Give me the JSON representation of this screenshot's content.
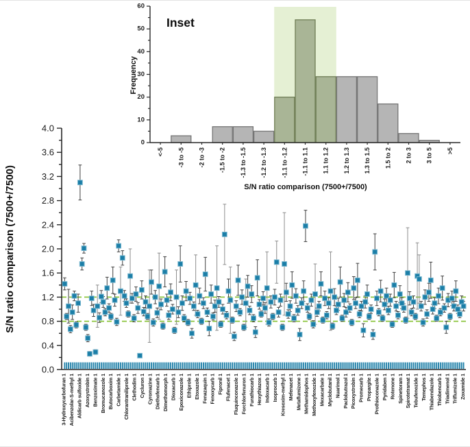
{
  "figure": {
    "main": {
      "y_title": "S/N ratio comparison (7500+/7500)"
    },
    "inset": {
      "label": "Inset",
      "y_title": "Frequency",
      "x_title": "S/N ratio comparison (7500+/7500)"
    }
  },
  "colors": {
    "marker": "#1b7ea7",
    "marker_edge": "#7ab8d0",
    "error_bar_dark": "#3f3f3f",
    "error_bar_light": "#8c8c8c",
    "reference_line": "#8dc63f",
    "axis": "#262626",
    "hist_bar_fill": "#b5b5b5",
    "hist_bar_stroke": "#757575",
    "hist_highlight_bar_fill": "#a9b596",
    "hist_highlight_bar_stroke": "#6f7d55",
    "hist_highlight_bg": "#e5f0d4"
  },
  "chart_data": [
    {
      "id": "main",
      "type": "scatter",
      "marker": "square",
      "error_bars": true,
      "grid": false,
      "ylabel": "S/N ratio comparison (7500+/7500)",
      "ylim": [
        0.0,
        4.0
      ],
      "ytick_step": 0.4,
      "ytick_minor_step": 0.2,
      "reference_lines": [
        0.8,
        1.2
      ],
      "baseline_band_value": 0.05,
      "points_per_category": 4,
      "categories": [
        "3-Hydroxycarbofuran 1",
        "Acibenzolar-S-methyl 1",
        "Aldicarb sulfoxide 1",
        "Azoxystrobin 1",
        "Benzoximate 1",
        "Bromucanozole 1",
        "Butocarboxim 1",
        "Carbetamide 1",
        "Chlorantraniliprole 1",
        "Clethodim 1",
        "Cycluron 1",
        "Cyromazine 1",
        "Diethofencarb 1",
        "Dimethomorph 1",
        "Dioxacarb 1",
        "Epoxiconazole 1",
        "Ethiprole 1",
        "Etoxazole 1",
        "Fenazaquin 1",
        "Fenoxycarb 1",
        "Fipronil 1",
        "Flufenacet 1",
        "Fluquinconazole 1",
        "Forchlorfenuron 1",
        "Furathiocarb 1",
        "Hexythiazox 1",
        "Indoxacarb 1",
        "Isoprocarb 1",
        "Kresoxim-methyl 1",
        "Mefenacet 1",
        "Metaflumizone 1",
        "Methamidophos 1",
        "Methoxyfenozide 1",
        "Mexacarbate 1",
        "Myclobutanil 1",
        "Nuarimol 1",
        "Paclobutrazol 1",
        "Picoxystrobin 1",
        "Promecarb 1",
        "Propargite 1",
        "Prothioconazole 1",
        "Pyridaben 1",
        "Rotenone 1",
        "Spinetoram 1",
        "Spirotetramat 1",
        "Tebufenozide 1",
        "Temephos 1",
        "Thiabendazole 1",
        "Thiobencarb 1",
        "Triadimenol 1",
        "Triflumizole 1",
        "Zoxamide 1"
      ],
      "points": [
        [
          1.42,
          0.1
        ],
        [
          0.88,
          0.05
        ],
        [
          1.05,
          0.28
        ],
        [
          0.67,
          0.06
        ],
        [
          0.95,
          0.12
        ],
        [
          1.22,
          0.08
        ],
        [
          0.74,
          0.05
        ],
        [
          1.1,
          0.15
        ],
        [
          3.1,
          0.29
        ],
        [
          1.75,
          0.1
        ],
        [
          2.01,
          0.08
        ],
        [
          0.7,
          0.05
        ],
        [
          0.52,
          0.06
        ],
        [
          0.26,
          0.04
        ],
        [
          1.18,
          0.12
        ],
        [
          0.98,
          0.1
        ],
        [
          0.29,
          0.04
        ],
        [
          1.05,
          0.35
        ],
        [
          0.86,
          0.08
        ],
        [
          1.21,
          0.1
        ],
        [
          1.12,
          0.09
        ],
        [
          0.95,
          0.06
        ],
        [
          1.35,
          0.18
        ],
        [
          1.02,
          0.07
        ],
        [
          0.88,
          0.05
        ],
        [
          1.48,
          0.22
        ],
        [
          1.15,
          0.1
        ],
        [
          0.79,
          0.06
        ],
        [
          2.05,
          0.1
        ],
        [
          1.3,
          0.4
        ],
        [
          1.85,
          0.12
        ],
        [
          1.22,
          0.09
        ],
        [
          1.1,
          0.07
        ],
        [
          0.92,
          0.05
        ],
        [
          1.55,
          0.45
        ],
        [
          1.18,
          0.08
        ],
        [
          0.85,
          0.06
        ],
        [
          1.25,
          0.12
        ],
        [
          1.02,
          0.09
        ],
        [
          0.23,
          0.03
        ],
        [
          1.32,
          0.15
        ],
        [
          0.96,
          0.07
        ],
        [
          1.12,
          0.1
        ],
        [
          0.88,
          0.05
        ],
        [
          1.05,
          0.6
        ],
        [
          1.45,
          0.2
        ],
        [
          0.78,
          0.06
        ],
        [
          1.2,
          0.11
        ],
        [
          0.94,
          0.08
        ],
        [
          1.38,
          0.55
        ],
        [
          1.08,
          0.09
        ],
        [
          0.72,
          0.05
        ],
        [
          1.62,
          0.25
        ],
        [
          1.15,
          0.1
        ],
        [
          0.9,
          0.07
        ],
        [
          1.28,
          0.14
        ],
        [
          1.0,
          0.08
        ],
        [
          0.65,
          0.05
        ],
        [
          1.2,
          0.45
        ],
        [
          0.95,
          0.09
        ],
        [
          1.75,
          0.3
        ],
        [
          1.1,
          0.12
        ],
        [
          0.85,
          0.06
        ],
        [
          1.3,
          0.16
        ],
        [
          0.78,
          0.05
        ],
        [
          1.18,
          0.1
        ],
        [
          0.6,
          0.08
        ],
        [
          1.05,
          0.07
        ],
        [
          1.4,
          0.5
        ],
        [
          0.92,
          0.06
        ],
        [
          1.22,
          0.13
        ],
        [
          0.8,
          0.05
        ],
        [
          1.1,
          0.09
        ],
        [
          1.58,
          0.28
        ],
        [
          0.95,
          0.07
        ],
        [
          0.68,
          0.12
        ],
        [
          1.25,
          0.15
        ],
        [
          0.88,
          0.06
        ],
        [
          1.05,
          0.1
        ],
        [
          1.35,
          0.7
        ],
        [
          1.12,
          0.09
        ],
        [
          0.75,
          0.05
        ],
        [
          1.0,
          0.08
        ],
        [
          2.24,
          0.5
        ],
        [
          0.9,
          0.06
        ],
        [
          1.3,
          0.2
        ],
        [
          1.15,
          0.55
        ],
        [
          0.82,
          0.05
        ],
        [
          0.55,
          0.07
        ],
        [
          1.05,
          0.09
        ],
        [
          1.48,
          0.25
        ],
        [
          0.95,
          0.06
        ],
        [
          1.2,
          0.12
        ],
        [
          0.7,
          0.05
        ],
        [
          1.1,
          0.4
        ],
        [
          1.38,
          0.18
        ],
        [
          0.98,
          0.07
        ],
        [
          1.25,
          0.14
        ],
        [
          0.85,
          0.06
        ],
        [
          0.62,
          0.09
        ],
        [
          1.52,
          0.3
        ],
        [
          1.08,
          0.08
        ],
        [
          0.92,
          0.05
        ],
        [
          1.18,
          0.11
        ],
        [
          1.02,
          0.09
        ],
        [
          1.35,
          0.6
        ],
        [
          0.78,
          0.06
        ],
        [
          1.12,
          0.1
        ],
        [
          0.88,
          0.05
        ],
        [
          1.2,
          0.13
        ],
        [
          1.78,
          0.35
        ],
        [
          0.95,
          0.08
        ],
        [
          1.15,
          0.1
        ],
        [
          0.7,
          0.05
        ],
        [
          1.75,
          0.85
        ],
        [
          1.28,
          0.15
        ],
        [
          0.92,
          0.07
        ],
        [
          1.05,
          0.09
        ],
        [
          1.4,
          0.22
        ],
        [
          0.85,
          0.06
        ],
        [
          1.22,
          0.12
        ],
        [
          0.98,
          0.08
        ],
        [
          0.58,
          0.1
        ],
        [
          1.1,
          0.09
        ],
        [
          1.3,
          0.17
        ],
        [
          2.38,
          0.26
        ],
        [
          1.02,
          0.07
        ],
        [
          0.88,
          0.05
        ],
        [
          1.15,
          0.1
        ],
        [
          0.75,
          0.06
        ],
        [
          1.25,
          0.5
        ],
        [
          0.95,
          0.07
        ],
        [
          1.05,
          0.08
        ],
        [
          1.42,
          0.2
        ],
        [
          0.82,
          0.05
        ],
        [
          1.18,
          0.12
        ],
        [
          0.9,
          0.06
        ],
        [
          1.1,
          0.09
        ],
        [
          1.3,
          0.65
        ],
        [
          0.72,
          0.05
        ],
        [
          1.2,
          0.14
        ],
        [
          0.98,
          0.07
        ],
        [
          1.08,
          0.1
        ],
        [
          1.45,
          0.25
        ],
        [
          0.85,
          0.05
        ],
        [
          1.15,
          0.11
        ],
        [
          0.95,
          0.08
        ],
        [
          1.28,
          0.16
        ],
        [
          1.02,
          0.07
        ],
        [
          0.78,
          0.05
        ],
        [
          1.35,
          0.19
        ],
        [
          1.1,
          0.09
        ],
        [
          1.48,
          0.28
        ],
        [
          0.92,
          0.06
        ],
        [
          1.05,
          0.08
        ],
        [
          0.65,
          0.11
        ],
        [
          1.12,
          0.1
        ],
        [
          1.25,
          0.15
        ],
        [
          0.88,
          0.05
        ],
        [
          1.0,
          0.07
        ],
        [
          0.58,
          0.08
        ],
        [
          1.95,
          0.3
        ],
        [
          1.18,
          0.12
        ],
        [
          0.95,
          0.06
        ],
        [
          1.3,
          0.18
        ],
        [
          0.85,
          0.05
        ],
        [
          1.08,
          0.09
        ],
        [
          1.22,
          0.13
        ],
        [
          0.98,
          0.07
        ],
        [
          1.15,
          0.1
        ],
        [
          0.75,
          0.05
        ],
        [
          1.4,
          0.21
        ],
        [
          1.05,
          0.08
        ],
        [
          0.9,
          0.06
        ],
        [
          1.25,
          0.14
        ],
        [
          1.1,
          0.09
        ],
        [
          1.02,
          0.07
        ],
        [
          0.82,
          0.05
        ],
        [
          1.6,
          0.75
        ],
        [
          1.18,
          0.11
        ],
        [
          0.95,
          0.06
        ],
        [
          1.12,
          0.1
        ],
        [
          0.88,
          0.05
        ],
        [
          1.55,
          0.55
        ],
        [
          1.5,
          0.4
        ],
        [
          1.05,
          0.08
        ],
        [
          0.78,
          0.06
        ],
        [
          1.2,
          0.12
        ],
        [
          0.92,
          0.07
        ],
        [
          1.28,
          0.15
        ],
        [
          1.48,
          0.3
        ],
        [
          1.0,
          0.08
        ],
        [
          1.1,
          0.09
        ],
        [
          0.85,
          0.05
        ],
        [
          1.22,
          0.13
        ],
        [
          0.95,
          0.06
        ],
        [
          1.35,
          0.2
        ],
        [
          1.02,
          0.07
        ],
        [
          0.7,
          0.1
        ],
        [
          1.15,
          0.11
        ],
        [
          0.88,
          0.05
        ],
        [
          1.18,
          0.12
        ],
        [
          1.05,
          0.08
        ],
        [
          1.3,
          0.17
        ],
        [
          1.0,
          0.07
        ],
        [
          0.92,
          0.06
        ],
        [
          1.12,
          0.1
        ],
        [
          1.05,
          0.08
        ]
      ]
    },
    {
      "id": "inset",
      "type": "bar",
      "title": "Inset",
      "xlabel": "S/N ratio comparison (7500+/7500)",
      "ylabel": "Frequency",
      "ylim": [
        0,
        60
      ],
      "ytick_step": 10,
      "ytick_minor_step": 5,
      "grid": false,
      "categories": [
        "<-5",
        "-3 to -5",
        "-2 to -3",
        "-1.5 to -2",
        "-1.3 to -1.5",
        "-1.2 to -1.3",
        "-1.1 to -1.2",
        "-1.1 to 1.1",
        "1.1 to 1.2",
        "1.2 to 1.3",
        "1.3 to 1.5",
        "1.5 to 2",
        "2 to 3",
        "3 to 5",
        ">5"
      ],
      "values": [
        0,
        3,
        0,
        7,
        7,
        5,
        20,
        54,
        29,
        29,
        29,
        17,
        4,
        1,
        0
      ],
      "highlight_category_range": [
        6,
        8
      ]
    }
  ]
}
